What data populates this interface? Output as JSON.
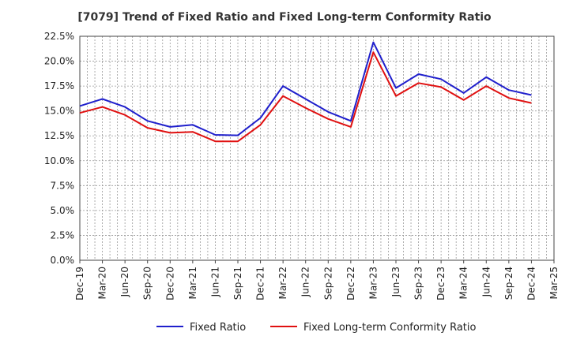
{
  "chart_data": {
    "type": "line",
    "title": "[7079]  Trend of Fixed Ratio and Fixed Long-term Conformity Ratio",
    "xlabel": "",
    "ylabel": "",
    "ylim": [
      0,
      22.5
    ],
    "y_ticks": [
      "0.0%",
      "2.5%",
      "5.0%",
      "7.5%",
      "10.0%",
      "12.5%",
      "15.0%",
      "17.5%",
      "20.0%",
      "22.5%"
    ],
    "x": [
      "Dec-19",
      "Mar-20",
      "Jun-20",
      "Sep-20",
      "Dec-20",
      "Mar-21",
      "Jun-21",
      "Sep-21",
      "Dec-21",
      "Mar-22",
      "Jun-22",
      "Sep-22",
      "Dec-22",
      "Mar-23",
      "Jun-23",
      "Sep-23",
      "Dec-23",
      "Mar-24",
      "Jun-24",
      "Sep-24",
      "Dec-24",
      "Mar-25"
    ],
    "grid": true,
    "legend_position": "bottom",
    "series": [
      {
        "name": "Fixed Ratio",
        "color": "#1f1fcc",
        "values": [
          15.5,
          16.2,
          15.4,
          14.0,
          13.4,
          13.6,
          12.6,
          12.55,
          14.3,
          17.5,
          16.2,
          14.9,
          14.0,
          21.9,
          17.3,
          18.7,
          18.2,
          16.8,
          18.4,
          17.1,
          16.6,
          null
        ]
      },
      {
        "name": "Fixed Long-term Conformity Ratio",
        "color": "#e01010",
        "values": [
          14.8,
          15.4,
          14.6,
          13.3,
          12.8,
          12.9,
          11.95,
          11.95,
          13.6,
          16.5,
          15.3,
          14.2,
          13.4,
          20.9,
          16.5,
          17.8,
          17.4,
          16.1,
          17.5,
          16.3,
          15.8,
          null
        ]
      }
    ]
  }
}
